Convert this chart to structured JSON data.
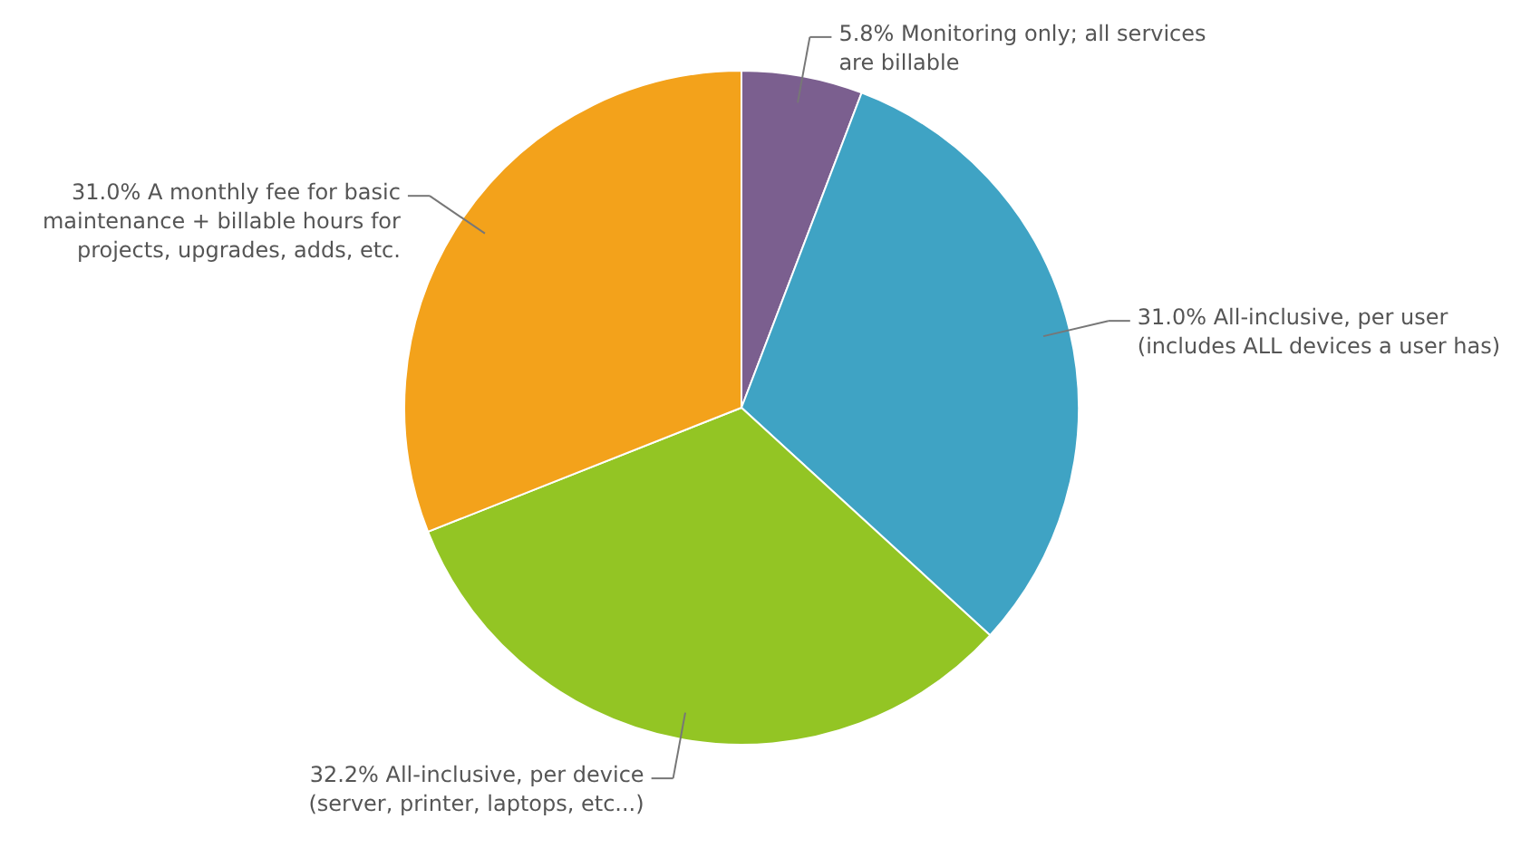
{
  "chart_data": {
    "type": "pie",
    "categories": [
      "Monitoring only; all services are billable",
      "All-inclusive, per user (includes ALL devices a user has)",
      "All-inclusive, per device (server, printer, laptops, etc...)",
      "A monthly fee for basic maintenance + billable hours for projects, upgrades, adds, etc."
    ],
    "values": [
      5.8,
      31.0,
      32.2,
      31.0
    ],
    "value_labels": [
      "5.8%",
      "31.0%",
      "32.2%",
      "31.0%"
    ],
    "colors": [
      "#7b5f8f",
      "#3fa3c4",
      "#93c524",
      "#f3a21b"
    ]
  }
}
